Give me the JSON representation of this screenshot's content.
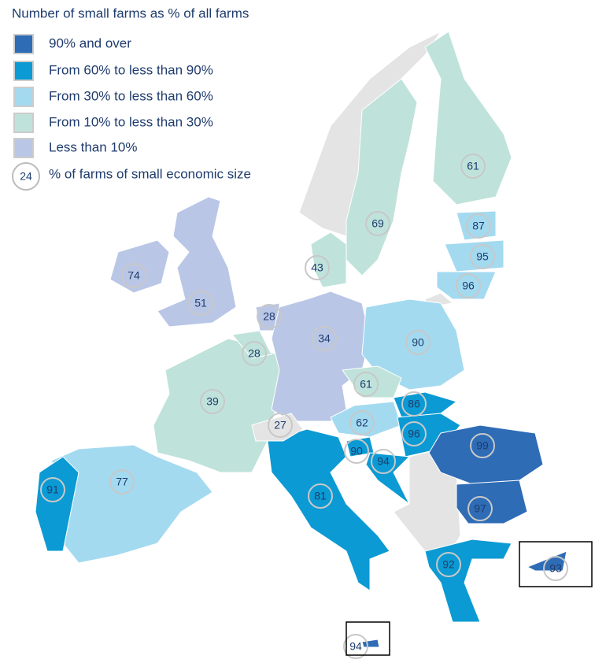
{
  "chart_data": {
    "type": "map",
    "title": "Number of small farms as % of all farms",
    "legend": [
      {
        "label": "90% and over",
        "color": "#2e6cb5"
      },
      {
        "label": "From 60% to less than 90%",
        "color": "#0b9ad3"
      },
      {
        "label": "From 30% to less than 60%",
        "color": "#a3daf0"
      },
      {
        "label": "From 10% to less than 30%",
        "color": "#bfe3da"
      },
      {
        "label": "Less than 10%",
        "color": "#b9c6e6"
      }
    ],
    "legend_circle": {
      "value": 24,
      "label": "% of farms of small economic size"
    },
    "regions": [
      {
        "value": 74,
        "color": "#b9c6e6"
      },
      {
        "value": 51,
        "color": "#b9c6e6"
      },
      {
        "value": 39,
        "color": "#bfe3da"
      },
      {
        "value": 77,
        "color": "#a3daf0"
      },
      {
        "value": 91,
        "color": "#0b9ad3"
      },
      {
        "value": 28,
        "color": "#bfe3da"
      },
      {
        "value": 28,
        "color": "#b9c6e6"
      },
      {
        "value": 34,
        "color": "#b9c6e6"
      },
      {
        "value": 43,
        "color": "#bfe3da"
      },
      {
        "value": 69,
        "color": "#bfe3da"
      },
      {
        "value": 61,
        "color": "#bfe3da"
      },
      {
        "value": 87,
        "color": "#a3daf0"
      },
      {
        "value": 95,
        "color": "#a3daf0"
      },
      {
        "value": 96,
        "color": "#a3daf0"
      },
      {
        "value": 90,
        "color": "#a3daf0"
      },
      {
        "value": 61,
        "color": "#bfe3da"
      },
      {
        "value": 62,
        "color": "#a3daf0"
      },
      {
        "value": 86,
        "color": "#0b9ad3"
      },
      {
        "value": 96,
        "color": "#0b9ad3"
      },
      {
        "value": 90,
        "color": "#0b9ad3"
      },
      {
        "value": 94,
        "color": "#0b9ad3"
      },
      {
        "value": 81,
        "color": "#0b9ad3"
      },
      {
        "value": 99,
        "color": "#2e6cb5"
      },
      {
        "value": 97,
        "color": "#2e6cb5"
      },
      {
        "value": 92,
        "color": "#0b9ad3"
      },
      {
        "value": 93,
        "color": "#2e6cb5"
      },
      {
        "value": 94,
        "color": "#2e6cb5"
      },
      {
        "value": 27,
        "color": "#e4e4e4"
      }
    ]
  }
}
